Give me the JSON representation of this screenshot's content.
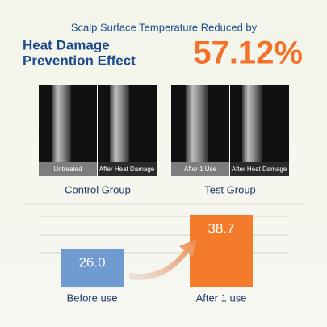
{
  "header": {
    "subtitle": "Scalp Surface Temperature Reduced by",
    "title_lines": [
      "Heat Damage",
      "Prevention Effect"
    ],
    "highlight": "57.12%"
  },
  "images": [
    {
      "caption": "Control Group",
      "labels": [
        "Untreated",
        "After Heat Damage"
      ]
    },
    {
      "caption": "Test Group",
      "labels": [
        "After 1 Use",
        "After Heat Damage"
      ]
    }
  ],
  "chart_data": {
    "type": "bar",
    "categories": [
      "Before use",
      "After 1 use"
    ],
    "values": [
      26.0,
      38.7
    ],
    "value_labels": [
      "26.0",
      "38.7"
    ],
    "colors": [
      "#6f9bd1",
      "#f47b2c"
    ],
    "ylim": [
      11.5,
      41.7
    ]
  }
}
